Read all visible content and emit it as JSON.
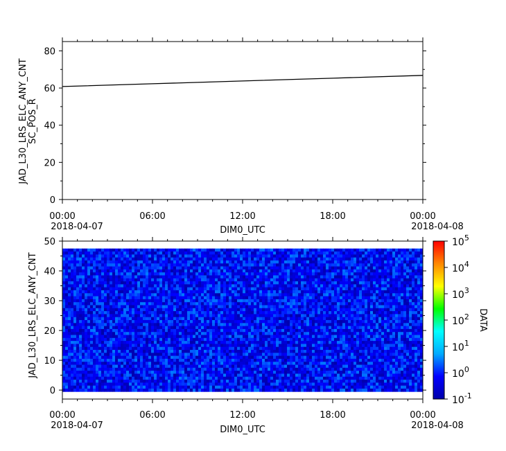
{
  "chart_data": [
    {
      "type": "line",
      "ylabel": [
        "JAD_L30_LRS_ELC_ANY_CNT",
        "SC_POS_R"
      ],
      "xlabel": "DIM0_UTC",
      "xlim": [
        "2018-04-07T00:00",
        "2018-04-08T00:00"
      ],
      "ylim": [
        0,
        85
      ],
      "yticks": [
        0,
        20,
        40,
        60,
        80
      ],
      "xticks": [
        {
          "value": "2018-04-07T00:00",
          "label": "00:00",
          "date": "2018-04-07"
        },
        {
          "value": "2018-04-07T06:00",
          "label": "06:00",
          "date": ""
        },
        {
          "value": "2018-04-07T12:00",
          "label": "12:00",
          "date": ""
        },
        {
          "value": "2018-04-07T18:00",
          "label": "18:00",
          "date": ""
        },
        {
          "value": "2018-04-08T00:00",
          "label": "00:00",
          "date": "2018-04-08"
        }
      ],
      "series": [
        {
          "color": "#000000",
          "x": [
            "2018-04-07T00:00",
            "2018-04-07T06:00",
            "2018-04-07T12:00",
            "2018-04-07T18:00",
            "2018-04-08T00:00"
          ],
          "y": [
            60.8,
            62.3,
            63.8,
            65.3,
            66.8
          ]
        }
      ]
    },
    {
      "type": "heatmap",
      "ylabel": "JAD_L30_LRS_ELC_ANY_CNT",
      "xlabel": "DIM0_UTC",
      "xlim": [
        "2018-04-07T00:00",
        "2018-04-08T00:00"
      ],
      "ylim": [
        -3,
        50
      ],
      "yticks": [
        0,
        10,
        20,
        30,
        40,
        50
      ],
      "y_bins": [
        0,
        47
      ],
      "xticks": [
        {
          "value": "2018-04-07T00:00",
          "label": "00:00",
          "date": "2018-04-07"
        },
        {
          "value": "2018-04-07T06:00",
          "label": "06:00",
          "date": ""
        },
        {
          "value": "2018-04-07T12:00",
          "label": "12:00",
          "date": ""
        },
        {
          "value": "2018-04-07T18:00",
          "label": "18:00",
          "date": ""
        },
        {
          "value": "2018-04-08T00:00",
          "label": "00:00",
          "date": "2018-04-08"
        }
      ],
      "colorbar": {
        "label": "DATA",
        "scale": "log",
        "range": [
          0.1,
          100000
        ],
        "ticks": [
          {
            "value": 100000,
            "base": "10",
            "exp": "5"
          },
          {
            "value": 10000,
            "base": "10",
            "exp": "4"
          },
          {
            "value": 1000,
            "base": "10",
            "exp": "3"
          },
          {
            "value": 100,
            "base": "10",
            "exp": "2"
          },
          {
            "value": 10,
            "base": "10",
            "exp": "1"
          },
          {
            "value": 1,
            "base": "10",
            "exp": "0"
          },
          {
            "value": 0.1,
            "base": "10",
            "exp": "-1"
          }
        ],
        "colormap": [
          "#0000aa",
          "#0000ff",
          "#00aaff",
          "#00ffff",
          "#00ff00",
          "#ffff00",
          "#ff8800",
          "#ff0000"
        ]
      },
      "value_range_observed": [
        0.1,
        3
      ]
    }
  ]
}
